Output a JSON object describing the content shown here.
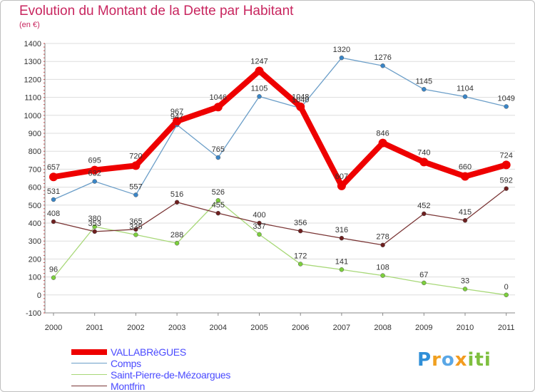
{
  "title": "Evolution du Montant de la Dette par Habitant",
  "unit_label": "(en €)",
  "logo": {
    "parts": [
      "P",
      "r",
      "o",
      "x",
      "iti"
    ]
  },
  "chart_data": {
    "type": "line",
    "title": "Evolution du Montant de la Dette par Habitant",
    "ylabel": "(en €)",
    "xlabel": "",
    "x": [
      "2000",
      "2001",
      "2002",
      "2003",
      "2004",
      "2005",
      "2006",
      "2007",
      "2008",
      "2009",
      "2010",
      "2011"
    ],
    "ylim": [
      -100,
      1400
    ],
    "yticks": [
      -100,
      0,
      100,
      200,
      300,
      400,
      500,
      600,
      700,
      800,
      900,
      1000,
      1100,
      1200,
      1300,
      1400
    ],
    "grid": "horizontal",
    "legend_position": "bottom-left",
    "series": [
      {
        "name": "Comps",
        "color": "#6b9ec8",
        "marker_color": "#3a86c8",
        "values": [
          531,
          632,
          557,
          947,
          765,
          1105,
          1040,
          1320,
          1276,
          1145,
          1104,
          1049
        ]
      },
      {
        "name": "Saint-Pierre-de-Mézoargues",
        "color": "#a8d878",
        "marker_color": "#7ccf3c",
        "values": [
          96,
          380,
          335,
          288,
          526,
          337,
          172,
          141,
          108,
          67,
          33,
          0
        ]
      },
      {
        "name": "Montfrin",
        "color": "#7a3535",
        "marker_color": "#6e1f1f",
        "values": [
          408,
          353,
          365,
          516,
          455,
          400,
          356,
          316,
          278,
          452,
          415,
          592
        ]
      },
      {
        "name": "VALLABRèGUES",
        "color": "#ee0000",
        "marker_color": "#ee0000",
        "values": [
          657,
          695,
          720,
          967,
          1046,
          1247,
          1048,
          607,
          846,
          740,
          660,
          724
        ],
        "bold": true
      }
    ]
  }
}
